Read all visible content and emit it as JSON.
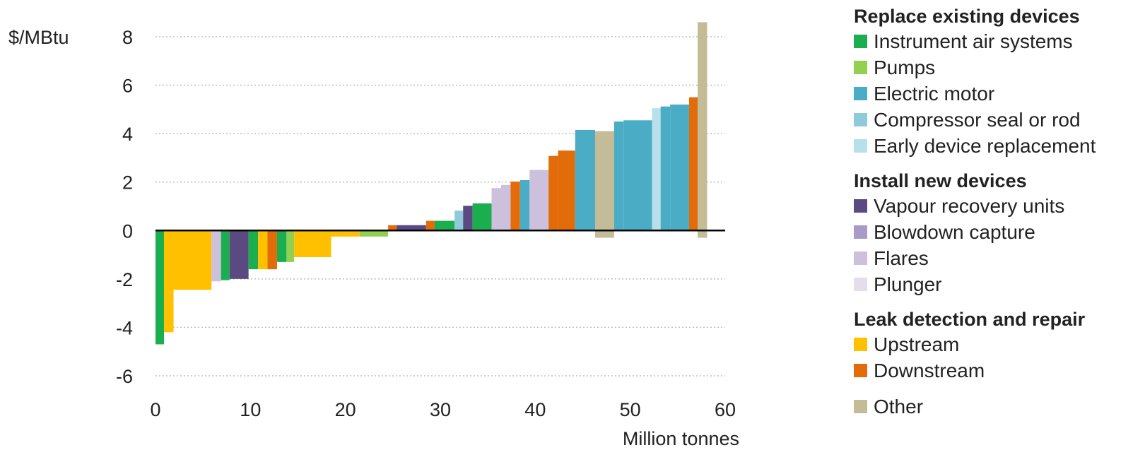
{
  "chart_data": {
    "type": "bar",
    "subtype": "marginal-abatement-cost-curve",
    "title": "",
    "ylabel": "$/MBtu",
    "xlabel": "Million tonnes",
    "xlim": [
      0,
      60
    ],
    "ylim": [
      -6,
      8
    ],
    "xticks": [
      0,
      10,
      20,
      30,
      40,
      50,
      60
    ],
    "yticks": [
      -6,
      -4,
      -2,
      0,
      2,
      4,
      6,
      8
    ],
    "grid": "horizontal-dotted",
    "legend_position": "right",
    "categories": {
      "instrument_air": {
        "label": "Instrument air systems",
        "color": "#1aae4f"
      },
      "pumps": {
        "label": "Pumps",
        "color": "#92d050"
      },
      "electric_motor": {
        "label": "Electric motor",
        "color": "#4bacc6"
      },
      "compressor_seal": {
        "label": "Compressor seal or rod",
        "color": "#8fcadb"
      },
      "early_device": {
        "label": "Early device replacement",
        "color": "#b8e0ea"
      },
      "vru": {
        "label": "Vapour recovery units",
        "color": "#5b4a82"
      },
      "blowdown": {
        "label": "Blowdown capture",
        "color": "#a99ac8"
      },
      "flares": {
        "label": "Flares",
        "color": "#ccc0dc"
      },
      "plunger": {
        "label": "Plunger",
        "color": "#e4deec"
      },
      "upstream": {
        "label": "Upstream",
        "color": "#ffc000"
      },
      "downstream": {
        "label": "Downstream",
        "color": "#e36c0a"
      },
      "other": {
        "label": "Other",
        "color": "#c4bc96"
      }
    },
    "bars": [
      {
        "x0": 0.0,
        "x1": 0.9,
        "value": -4.7,
        "category": "instrument_air"
      },
      {
        "x0": 0.9,
        "x1": 1.9,
        "value": -4.2,
        "category": "upstream"
      },
      {
        "x0": 1.9,
        "x1": 5.9,
        "value": -2.45,
        "category": "upstream"
      },
      {
        "x0": 5.9,
        "x1": 6.9,
        "value": -2.1,
        "category": "flares"
      },
      {
        "x0": 6.9,
        "x1": 7.8,
        "value": -2.05,
        "category": "instrument_air"
      },
      {
        "x0": 7.8,
        "x1": 9.8,
        "value": -2.0,
        "category": "vru"
      },
      {
        "x0": 9.8,
        "x1": 10.8,
        "value": -1.6,
        "category": "instrument_air"
      },
      {
        "x0": 10.8,
        "x1": 11.8,
        "value": -1.6,
        "category": "upstream"
      },
      {
        "x0": 11.8,
        "x1": 12.8,
        "value": -1.6,
        "category": "downstream"
      },
      {
        "x0": 12.8,
        "x1": 13.8,
        "value": -1.3,
        "category": "instrument_air"
      },
      {
        "x0": 13.8,
        "x1": 14.6,
        "value": -1.3,
        "category": "pumps"
      },
      {
        "x0": 14.6,
        "x1": 18.5,
        "value": -1.1,
        "category": "upstream"
      },
      {
        "x0": 18.5,
        "x1": 21.5,
        "value": -0.25,
        "category": "upstream"
      },
      {
        "x0": 21.5,
        "x1": 24.5,
        "value": -0.25,
        "category": "pumps"
      },
      {
        "x0": 24.5,
        "x1": 25.4,
        "value": 0.22,
        "category": "downstream"
      },
      {
        "x0": 25.4,
        "x1": 28.5,
        "value": 0.22,
        "category": "vru"
      },
      {
        "x0": 28.5,
        "x1": 29.4,
        "value": 0.4,
        "category": "downstream"
      },
      {
        "x0": 29.4,
        "x1": 31.5,
        "value": 0.4,
        "category": "instrument_air"
      },
      {
        "x0": 31.5,
        "x1": 32.4,
        "value": 0.82,
        "category": "compressor_seal"
      },
      {
        "x0": 32.4,
        "x1": 33.4,
        "value": 1.02,
        "category": "vru"
      },
      {
        "x0": 33.4,
        "x1": 35.4,
        "value": 1.12,
        "category": "instrument_air"
      },
      {
        "x0": 35.4,
        "x1": 36.4,
        "value": 1.75,
        "category": "flares"
      },
      {
        "x0": 36.4,
        "x1": 37.4,
        "value": 1.88,
        "category": "flares"
      },
      {
        "x0": 37.4,
        "x1": 38.4,
        "value": 2.02,
        "category": "downstream"
      },
      {
        "x0": 38.4,
        "x1": 39.4,
        "value": 2.08,
        "category": "electric_motor"
      },
      {
        "x0": 39.4,
        "x1": 41.4,
        "value": 2.5,
        "category": "flares"
      },
      {
        "x0": 41.4,
        "x1": 42.4,
        "value": 3.08,
        "category": "downstream"
      },
      {
        "x0": 42.4,
        "x1": 44.2,
        "value": 3.3,
        "category": "downstream"
      },
      {
        "x0": 44.2,
        "x1": 46.3,
        "value": 4.15,
        "category": "electric_motor"
      },
      {
        "x0": 46.3,
        "x1": 48.3,
        "value": 4.1,
        "category": "other"
      },
      {
        "x0": 46.3,
        "x1": 48.3,
        "value": -0.3,
        "category": "other"
      },
      {
        "x0": 48.3,
        "x1": 49.3,
        "value": 4.5,
        "category": "electric_motor"
      },
      {
        "x0": 49.3,
        "x1": 52.3,
        "value": 4.55,
        "category": "electric_motor"
      },
      {
        "x0": 52.3,
        "x1": 53.2,
        "value": 5.05,
        "category": "early_device"
      },
      {
        "x0": 53.2,
        "x1": 54.2,
        "value": 5.12,
        "category": "electric_motor"
      },
      {
        "x0": 54.2,
        "x1": 56.2,
        "value": 5.2,
        "category": "electric_motor"
      },
      {
        "x0": 56.2,
        "x1": 57.1,
        "value": 5.5,
        "category": "downstream"
      },
      {
        "x0": 57.1,
        "x1": 58.1,
        "value": 8.6,
        "category": "other"
      },
      {
        "x0": 57.1,
        "x1": 58.1,
        "value": -0.3,
        "category": "other"
      }
    ]
  },
  "legend": {
    "groups": [
      {
        "title": "Replace existing devices",
        "items": [
          {
            "key": "instrument_air",
            "label": "Instrument air systems",
            "color": "#1aae4f"
          },
          {
            "key": "pumps",
            "label": "Pumps",
            "color": "#92d050"
          },
          {
            "key": "electric_motor",
            "label": "Electric motor",
            "color": "#4bacc6"
          },
          {
            "key": "compressor_seal",
            "label": "Compressor seal or rod",
            "color": "#8fcadb"
          },
          {
            "key": "early_device",
            "label": "Early device replacement",
            "color": "#b8e0ea"
          }
        ]
      },
      {
        "title": "Install new devices",
        "items": [
          {
            "key": "vru",
            "label": "Vapour recovery units",
            "color": "#5b4a82"
          },
          {
            "key": "blowdown",
            "label": "Blowdown capture",
            "color": "#a99ac8"
          },
          {
            "key": "flares",
            "label": "Flares",
            "color": "#ccc0dc"
          },
          {
            "key": "plunger",
            "label": "Plunger",
            "color": "#e4deec"
          }
        ]
      },
      {
        "title": "Leak detection and repair",
        "items": [
          {
            "key": "upstream",
            "label": "Upstream",
            "color": "#ffc000"
          },
          {
            "key": "downstream",
            "label": "Downstream",
            "color": "#e36c0a"
          }
        ]
      },
      {
        "title": "",
        "items": [
          {
            "key": "other",
            "label": "Other",
            "color": "#c4bc96"
          }
        ]
      }
    ]
  }
}
